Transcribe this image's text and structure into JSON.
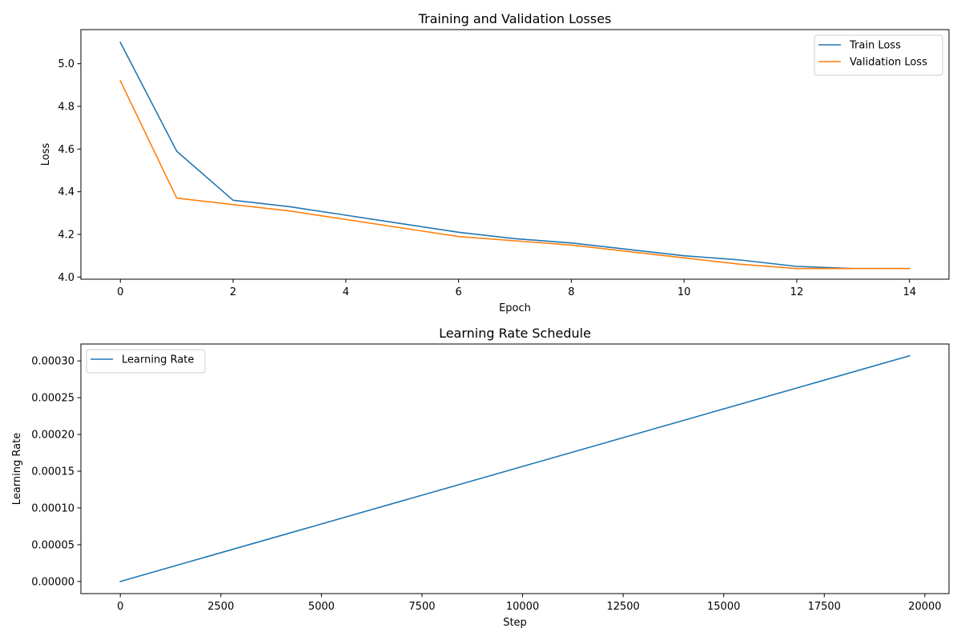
{
  "chart_data": [
    {
      "type": "line",
      "title": "Training and Validation Losses",
      "xlabel": "Epoch",
      "ylabel": "Loss",
      "xlim": [
        -0.7,
        14.7
      ],
      "ylim": [
        3.99,
        5.16
      ],
      "xticks": [
        0,
        2,
        4,
        6,
        8,
        10,
        12,
        14
      ],
      "xtick_labels": [
        "0",
        "2",
        "4",
        "6",
        "8",
        "10",
        "12",
        "14"
      ],
      "yticks": [
        4.0,
        4.2,
        4.4,
        4.6,
        4.8,
        5.0
      ],
      "ytick_labels": [
        "4.0",
        "4.2",
        "4.4",
        "4.6",
        "4.8",
        "5.0"
      ],
      "grid": false,
      "legend": "upper-right",
      "x": [
        0,
        1,
        2,
        3,
        4,
        5,
        6,
        7,
        8,
        9,
        10,
        11,
        12,
        13,
        14
      ],
      "series": [
        {
          "name": "Train Loss",
          "color": "#1f77b4",
          "values": [
            5.1,
            4.59,
            4.36,
            4.33,
            4.29,
            4.25,
            4.21,
            4.18,
            4.16,
            4.13,
            4.1,
            4.08,
            4.05,
            4.04,
            4.04
          ]
        },
        {
          "name": "Validation Loss",
          "color": "#ff7f0e",
          "values": [
            4.92,
            4.37,
            4.34,
            4.31,
            4.27,
            4.23,
            4.19,
            4.17,
            4.15,
            4.12,
            4.09,
            4.06,
            4.04,
            4.04,
            4.04
          ]
        }
      ]
    },
    {
      "type": "line",
      "title": "Learning Rate Schedule",
      "xlabel": "Step",
      "ylabel": "Learning Rate",
      "xlim": [
        -980,
        20600
      ],
      "ylim": [
        -1.65e-05,
        0.000323
      ],
      "xticks": [
        0,
        2500,
        5000,
        7500,
        10000,
        12500,
        15000,
        17500,
        20000
      ],
      "xtick_labels": [
        "0",
        "2500",
        "5000",
        "7500",
        "10000",
        "12500",
        "15000",
        "17500",
        "20000"
      ],
      "yticks": [
        0,
        5e-05,
        0.0001,
        0.00015,
        0.0002,
        0.00025,
        0.0003
      ],
      "ytick_labels": [
        "0.00000",
        "0.00005",
        "0.00010",
        "0.00015",
        "0.00020",
        "0.00025",
        "0.00030"
      ],
      "grid": false,
      "legend": "upper-left",
      "x": [
        0,
        19620
      ],
      "series": [
        {
          "name": "Learning Rate",
          "color": "#1f77b4",
          "values": [
            0,
            0.000307
          ]
        }
      ]
    }
  ]
}
